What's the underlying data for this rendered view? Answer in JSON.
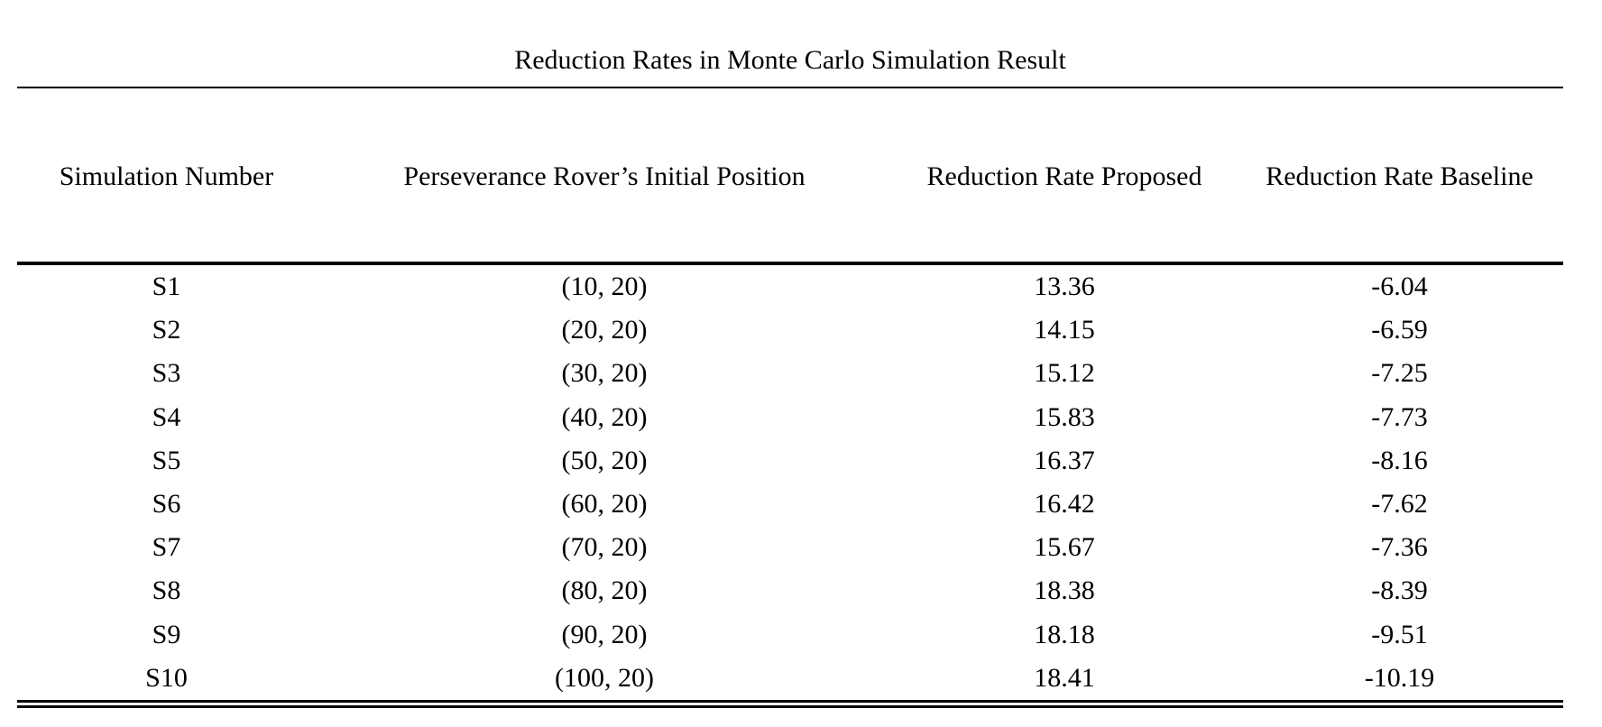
{
  "doc": {
    "title": "Reduction Rates in Monte Carlo Simulation Result",
    "columns": [
      "Simulation Number",
      "Perseverance Rover’s Initial Position",
      "Reduction Rate Proposed",
      "Reduction Rate Baseline"
    ],
    "rows": [
      {
        "sim": "S1",
        "position": "(10, 20)",
        "proposed": "13.36",
        "baseline": "-6.04"
      },
      {
        "sim": "S2",
        "position": "(20, 20)",
        "proposed": "14.15",
        "baseline": "-6.59"
      },
      {
        "sim": "S3",
        "position": "(30, 20)",
        "proposed": "15.12",
        "baseline": "-7.25"
      },
      {
        "sim": "S4",
        "position": "(40, 20)",
        "proposed": "15.83",
        "baseline": "-7.73"
      },
      {
        "sim": "S5",
        "position": "(50, 20)",
        "proposed": "16.37",
        "baseline": "-8.16"
      },
      {
        "sim": "S6",
        "position": "(60, 20)",
        "proposed": "16.42",
        "baseline": "-7.62"
      },
      {
        "sim": "S7",
        "position": "(70, 20)",
        "proposed": "15.67",
        "baseline": "-7.36"
      },
      {
        "sim": "S8",
        "position": "(80, 20)",
        "proposed": "18.38",
        "baseline": "-8.39"
      },
      {
        "sim": "S9",
        "position": "(90, 20)",
        "proposed": "18.18",
        "baseline": "-9.51"
      },
      {
        "sim": "S10",
        "position": "(100, 20)",
        "proposed": "18.41",
        "baseline": "-10.19"
      }
    ],
    "colors": {
      "text": "#000000",
      "background": "#ffffff",
      "rule": "#000000"
    }
  },
  "chart_data": {
    "type": "table",
    "title": "Reduction Rates in Monte Carlo Simulation Result",
    "columns": [
      "Simulation Number",
      "Perseverance Rover’s Initial Position",
      "Reduction Rate Proposed",
      "Reduction Rate Baseline"
    ],
    "rows": [
      [
        "S1",
        "(10, 20)",
        13.36,
        -6.04
      ],
      [
        "S2",
        "(20, 20)",
        14.15,
        -6.59
      ],
      [
        "S3",
        "(30, 20)",
        15.12,
        -7.25
      ],
      [
        "S4",
        "(40, 20)",
        15.83,
        -7.73
      ],
      [
        "S5",
        "(50, 20)",
        16.37,
        -8.16
      ],
      [
        "S6",
        "(60, 20)",
        16.42,
        -7.62
      ],
      [
        "S7",
        "(70, 20)",
        15.67,
        -7.36
      ],
      [
        "S8",
        "(80, 20)",
        18.38,
        -8.39
      ],
      [
        "S9",
        "(90, 20)",
        18.18,
        -9.51
      ],
      [
        "S10",
        "(100, 20)",
        18.41,
        -10.19
      ]
    ]
  }
}
